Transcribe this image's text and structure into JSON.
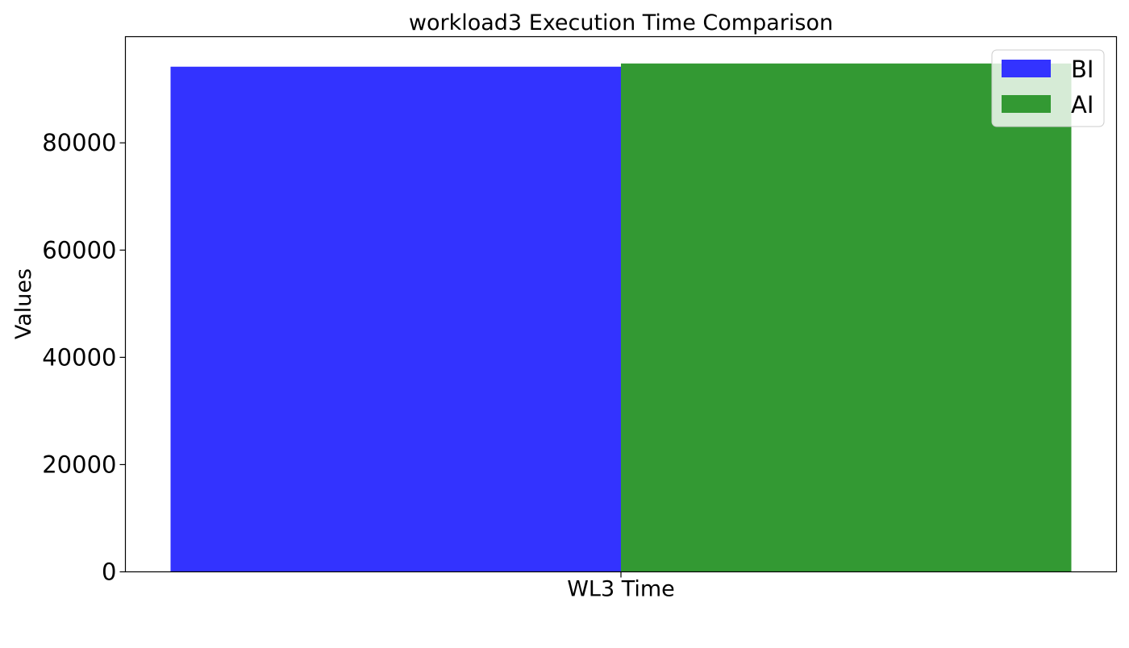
{
  "chart_data": {
    "type": "bar",
    "title": "workload3 Execution Time Comparison",
    "xlabel": "",
    "ylabel": "Values",
    "categories": [
      "WL3 Time"
    ],
    "series": [
      {
        "name": "BI",
        "values": [
          94200
        ],
        "color": "#3333ff"
      },
      {
        "name": "AI",
        "values": [
          94800
        ],
        "color": "#339933"
      }
    ],
    "ylim": [
      0,
      99800
    ],
    "yticks": [
      0,
      20000,
      40000,
      60000,
      80000
    ],
    "grid": false,
    "legend_position": "top-right"
  }
}
